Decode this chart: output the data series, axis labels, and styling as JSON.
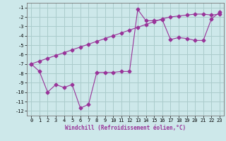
{
  "xlabel": "Windchill (Refroidissement éolien,°C)",
  "bg_color": "#cde8ea",
  "grid_color": "#aacccc",
  "line_color": "#993399",
  "xlim": [
    -0.5,
    23.5
  ],
  "ylim": [
    -12.5,
    -0.5
  ],
  "yticks": [
    -1,
    -2,
    -3,
    -4,
    -5,
    -6,
    -7,
    -8,
    -9,
    -10,
    -11,
    -12
  ],
  "xticks": [
    0,
    1,
    2,
    3,
    4,
    5,
    6,
    7,
    8,
    9,
    10,
    11,
    12,
    13,
    14,
    15,
    16,
    17,
    18,
    19,
    20,
    21,
    22,
    23
  ],
  "curve1_x": [
    0,
    1,
    2,
    3,
    4,
    5,
    6,
    7,
    8,
    9,
    10,
    11,
    12,
    13,
    14,
    15,
    16,
    17,
    18,
    19,
    20,
    21,
    22,
    23
  ],
  "curve1_y": [
    -7.0,
    -7.8,
    -10.0,
    -9.2,
    -9.5,
    -9.2,
    -11.7,
    -11.3,
    -7.9,
    -7.9,
    -7.9,
    -7.8,
    -7.8,
    -1.2,
    -2.4,
    -2.4,
    -2.3,
    -4.4,
    -4.2,
    -4.3,
    -4.5,
    -4.5,
    -2.2,
    -1.5
  ],
  "curve2_x": [
    0,
    1,
    2,
    3,
    4,
    5,
    6,
    7,
    8,
    9,
    10,
    11,
    12,
    13,
    14,
    15,
    16,
    17,
    18,
    19,
    20,
    21,
    22,
    23
  ],
  "curve2_y": [
    -7.0,
    -6.7,
    -6.4,
    -6.1,
    -5.8,
    -5.5,
    -5.2,
    -4.9,
    -4.6,
    -4.3,
    -4.0,
    -3.7,
    -3.4,
    -3.1,
    -2.8,
    -2.5,
    -2.2,
    -2.0,
    -1.9,
    -1.8,
    -1.7,
    -1.7,
    -1.8,
    -1.7
  ],
  "marker": "D",
  "markersize": 2.5,
  "linewidth": 0.8
}
